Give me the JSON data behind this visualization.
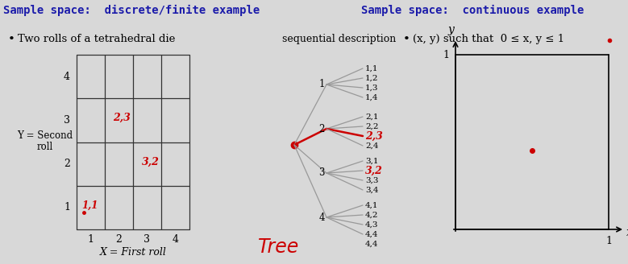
{
  "title_left": "Sample space:  discrete/finite example",
  "title_right": "Sample space:  continuous example",
  "title_color": "#1a1aaa",
  "bg_color": "#d8d8d8",
  "bullet_text": "Two rolls of a tetrahedral die",
  "seq_desc_text": "sequential description",
  "continuous_desc": "(x, y) such that  0 ≤ x, y ≤ 1",
  "grid_xlabel": "X = First roll",
  "red_color": "#cc0000",
  "gray_color": "#999999",
  "black": "#111111",
  "tree_word": "Tree",
  "fig_width": 7.79,
  "fig_height": 3.28
}
